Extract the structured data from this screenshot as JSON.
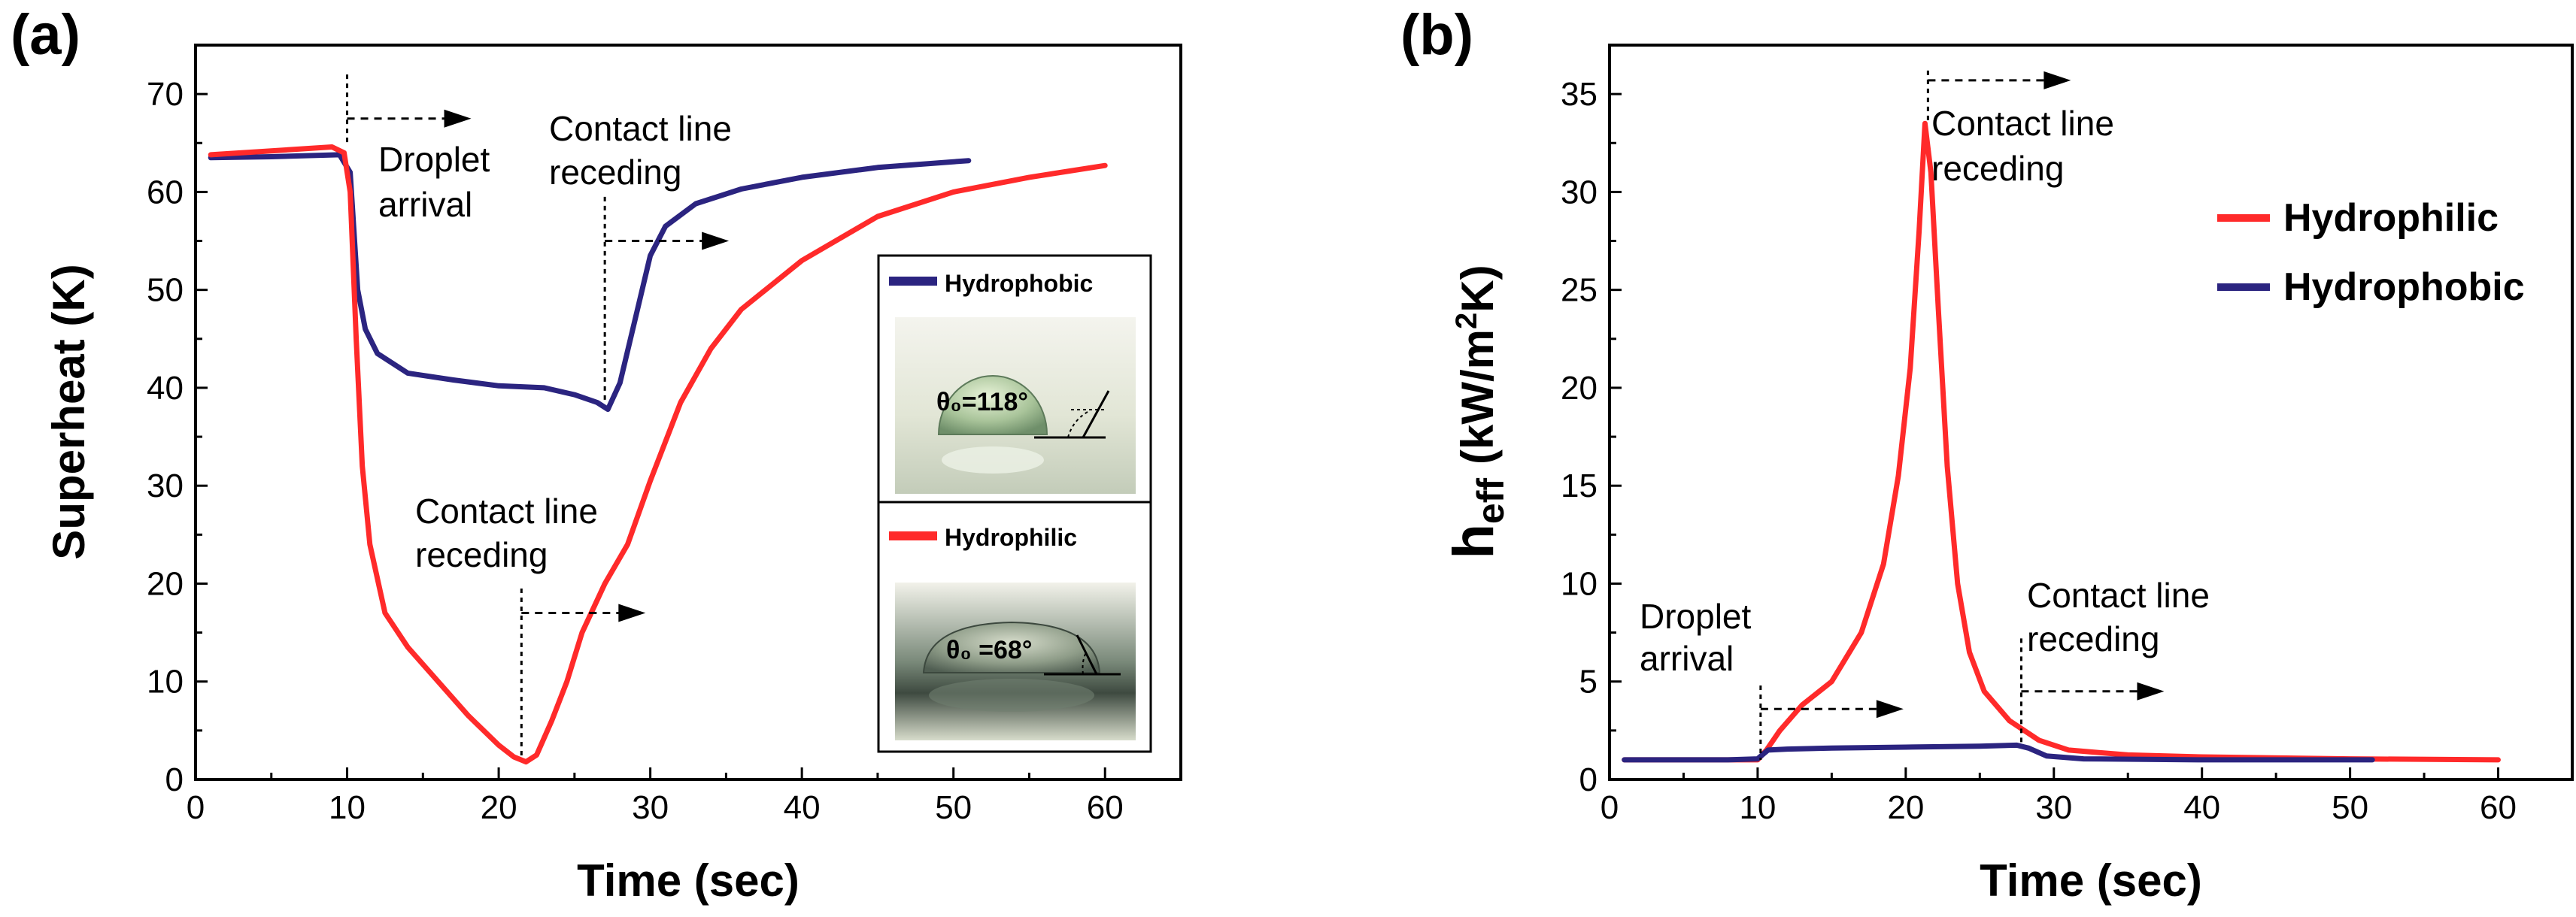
{
  "colors": {
    "hydrophilic": "#ff2a2a",
    "hydrophobic": "#2b2480",
    "axis": "#000000",
    "photo_bg_top": "#f2f2ea",
    "photo_bg_bottom": "#c8d0c0"
  },
  "chart_data": [
    {
      "id": "a",
      "panel_label": "(a)",
      "type": "line",
      "xlabel": "Time (sec)",
      "ylabel": "Superheat (K)",
      "xlim": [
        0,
        65
      ],
      "ylim": [
        0,
        75
      ],
      "xticks": [
        0,
        10,
        20,
        30,
        40,
        50,
        60
      ],
      "yticks": [
        0,
        10,
        20,
        30,
        40,
        50,
        60,
        70
      ],
      "series": [
        {
          "name": "Hydrophobic",
          "color_key": "hydrophobic",
          "points": [
            [
              1,
              63.5
            ],
            [
              5,
              63.6
            ],
            [
              9.5,
              63.8
            ],
            [
              10.2,
              62
            ],
            [
              10.7,
              50
            ],
            [
              11.2,
              46
            ],
            [
              12,
              43.5
            ],
            [
              14,
              41.5
            ],
            [
              17,
              40.8
            ],
            [
              20,
              40.2
            ],
            [
              23,
              40.0
            ],
            [
              25,
              39.3
            ],
            [
              26.5,
              38.5
            ],
            [
              27.2,
              37.8
            ],
            [
              28,
              40.5
            ],
            [
              29,
              47
            ],
            [
              30,
              53.5
            ],
            [
              31,
              56.5
            ],
            [
              33,
              58.8
            ],
            [
              36,
              60.3
            ],
            [
              40,
              61.5
            ],
            [
              45,
              62.5
            ],
            [
              51,
              63.2
            ]
          ]
        },
        {
          "name": "Hydrophilic",
          "color_key": "hydrophilic",
          "points": [
            [
              1,
              63.8
            ],
            [
              5,
              64.2
            ],
            [
              9,
              64.6
            ],
            [
              9.8,
              64.0
            ],
            [
              10.2,
              60
            ],
            [
              10.6,
              45
            ],
            [
              11,
              32
            ],
            [
              11.5,
              24
            ],
            [
              12.5,
              17
            ],
            [
              14,
              13.5
            ],
            [
              16,
              10
            ],
            [
              18,
              6.5
            ],
            [
              20,
              3.5
            ],
            [
              21,
              2.3
            ],
            [
              21.8,
              1.8
            ],
            [
              22.5,
              2.5
            ],
            [
              23.5,
              6
            ],
            [
              24.5,
              10
            ],
            [
              25.5,
              15
            ],
            [
              27,
              20
            ],
            [
              28.5,
              24
            ],
            [
              30,
              30.5
            ],
            [
              32,
              38.5
            ],
            [
              34,
              44
            ],
            [
              36,
              48
            ],
            [
              40,
              53
            ],
            [
              45,
              57.5
            ],
            [
              50,
              60
            ],
            [
              55,
              61.5
            ],
            [
              60,
              62.7
            ]
          ]
        }
      ],
      "annotations": [
        {
          "text_lines": [
            "Droplet",
            "arrival"
          ],
          "x": 10,
          "arrow_y": 67.5,
          "line_from": 72,
          "line_to": 65
        },
        {
          "text_lines": [
            "Contact line",
            "receding"
          ],
          "x": 27,
          "arrow_y": 55,
          "line_from": 59.5,
          "line_to": 38.5
        },
        {
          "text_lines": [
            "Contact line",
            "receding"
          ],
          "x": 21.5,
          "arrow_y": 17,
          "line_from": 19.5,
          "line_to": 2
        }
      ],
      "inset": {
        "top_legend": "Hydrophobic",
        "top_angle": "θ₀=118°",
        "bottom_legend": "Hydrophilic",
        "bottom_angle": "θ₀ =68°"
      }
    },
    {
      "id": "b",
      "panel_label": "(b)",
      "type": "line",
      "xlabel": "Time (sec)",
      "ylabel_main": "h",
      "ylabel_sub": "eff",
      "ylabel_units": "(kW/m",
      "ylabel_sup": "2",
      "ylabel_end": "K)",
      "xlim": [
        0,
        65
      ],
      "ylim": [
        0,
        37.5
      ],
      "xticks": [
        0,
        10,
        20,
        30,
        40,
        50,
        60
      ],
      "yticks": [
        0,
        5,
        10,
        15,
        20,
        25,
        30,
        35
      ],
      "legend": [
        "Hydrophilic",
        "Hydrophobic"
      ],
      "series": [
        {
          "name": "Hydrophilic",
          "color_key": "hydrophilic",
          "points": [
            [
              1,
              1.0
            ],
            [
              8,
              1.0
            ],
            [
              10,
              1.0
            ],
            [
              10.6,
              1.5
            ],
            [
              11.5,
              2.5
            ],
            [
              13,
              3.8
            ],
            [
              15,
              5.0
            ],
            [
              17,
              7.5
            ],
            [
              18.5,
              11
            ],
            [
              19.5,
              15.5
            ],
            [
              20.3,
              21
            ],
            [
              20.9,
              28
            ],
            [
              21.3,
              33.5
            ],
            [
              21.7,
              31
            ],
            [
              22.2,
              24
            ],
            [
              22.8,
              16
            ],
            [
              23.5,
              10
            ],
            [
              24.3,
              6.5
            ],
            [
              25.3,
              4.5
            ],
            [
              27,
              3.0
            ],
            [
              29,
              2.0
            ],
            [
              31,
              1.5
            ],
            [
              35,
              1.25
            ],
            [
              40,
              1.15
            ],
            [
              50,
              1.05
            ],
            [
              60,
              1.0
            ]
          ]
        },
        {
          "name": "Hydrophobic",
          "color_key": "hydrophobic",
          "points": [
            [
              1,
              1.0
            ],
            [
              8,
              1.0
            ],
            [
              10,
              1.05
            ],
            [
              10.7,
              1.5
            ],
            [
              12,
              1.55
            ],
            [
              15,
              1.6
            ],
            [
              20,
              1.65
            ],
            [
              25,
              1.7
            ],
            [
              27.5,
              1.75
            ],
            [
              28.3,
              1.6
            ],
            [
              29.5,
              1.2
            ],
            [
              32,
              1.05
            ],
            [
              40,
              1.0
            ],
            [
              51.5,
              1.0
            ]
          ]
        }
      ],
      "annotations": [
        {
          "text_lines": [
            "Droplet",
            "arrival"
          ],
          "x": 10.2,
          "arrow_y": 3.6,
          "line_from": 4.8,
          "line_to": 1.0
        },
        {
          "text_lines": [
            "Contact line",
            "receding"
          ],
          "x": 21.5,
          "arrow_y": 35.7,
          "line_from": 36.2,
          "line_to": 33.5
        },
        {
          "text_lines": [
            "Contact line",
            "receding"
          ],
          "x": 27.8,
          "arrow_y": 4.5,
          "line_from": 7.2,
          "line_to": 1.8
        }
      ]
    }
  ]
}
